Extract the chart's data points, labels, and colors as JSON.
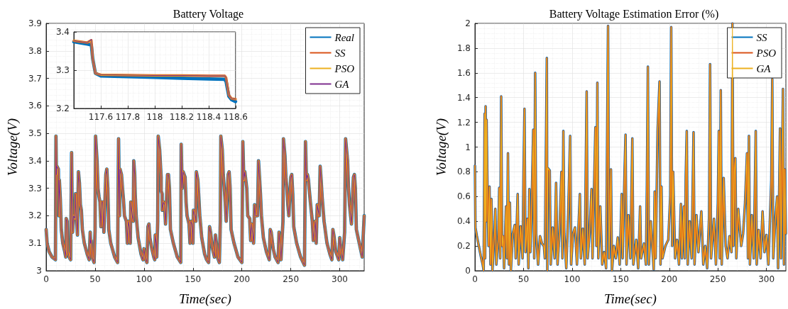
{
  "chart_data": [
    {
      "type": "line",
      "title": "Battery Voltage",
      "xlabel": "Time(sec)",
      "ylabel": "Voltage(V)",
      "xlim": [
        0,
        325
      ],
      "ylim": [
        3,
        3.9
      ],
      "xticks": [
        0,
        50,
        100,
        150,
        200,
        250,
        300
      ],
      "yticks": [
        3,
        3.1,
        3.2,
        3.3,
        3.4,
        3.5,
        3.6,
        3.7,
        3.8,
        3.9
      ],
      "grid": true,
      "legend": "top right",
      "x": [
        0,
        1,
        3,
        6,
        9.5,
        10,
        10.5,
        11,
        12.5,
        13,
        13.5,
        14.5,
        15.5,
        17,
        19,
        20,
        20.5,
        21.5,
        22,
        23.5,
        25,
        26,
        26.5,
        27,
        28,
        29.5,
        30,
        31,
        32,
        33,
        34,
        35,
        36,
        37,
        39,
        42,
        44,
        45,
        45.5,
        46,
        47,
        49,
        50,
        50.5,
        52,
        53,
        54,
        55,
        56,
        57,
        58,
        59,
        61,
        62,
        63,
        64,
        66,
        70,
        73,
        74,
        75,
        75.5,
        77,
        78,
        79,
        80,
        82,
        83,
        84,
        85,
        86,
        86.5,
        88,
        89,
        89.5,
        90.5,
        91,
        92,
        94,
        97,
        99,
        100,
        101,
        103,
        104,
        105,
        106,
        108,
        110,
        111,
        111.5,
        112.5,
        113,
        114,
        114.5,
        116,
        117.5,
        117.55,
        118.55,
        118.6,
        120,
        121,
        122,
        124,
        125,
        126,
        127,
        130,
        134,
        137.5,
        138,
        139,
        140,
        142,
        143,
        144,
        146,
        147,
        148,
        149,
        150,
        150.5,
        152,
        153,
        153.5,
        155,
        156,
        157,
        159,
        162,
        164,
        166,
        167,
        168,
        170,
        172,
        173,
        174,
        175,
        177,
        178,
        178.5,
        180,
        181,
        182,
        183,
        184,
        186,
        187,
        188,
        189,
        192,
        196,
        200,
        201,
        202,
        203,
        205,
        206,
        208,
        209,
        210,
        212,
        213,
        214,
        216,
        217,
        218,
        219,
        220,
        222,
        225,
        228,
        229,
        230,
        232,
        234,
        237,
        238,
        239,
        240,
        242,
        242.5,
        244,
        245,
        246,
        247,
        248,
        250,
        251,
        252,
        253,
        256,
        260,
        264,
        265,
        266,
        267,
        268,
        270,
        272,
        273,
        275,
        276,
        277,
        279,
        280,
        281,
        282,
        284,
        287,
        290,
        292,
        293,
        294,
        296,
        299,
        300,
        301,
        303,
        305,
        306,
        308,
        309,
        310,
        312,
        314,
        315,
        316,
        317,
        320,
        323,
        325
      ],
      "series": [
        {
          "name": "Real",
          "color": "#0072bd",
          "values": [
            3.15,
            3.1,
            3.07,
            3.05,
            3.04,
            3.49,
            3.35,
            3.38,
            3.37,
            3.2,
            3.33,
            3.26,
            3.15,
            3.1,
            3.07,
            3.05,
            3.19,
            3.18,
            3.07,
            3.05,
            3.04,
            3.43,
            3.25,
            3.14,
            3.2,
            3.19,
            3.28,
            3.19,
            3.13,
            3.36,
            3.32,
            3.24,
            3.22,
            3.15,
            3.1,
            3.06,
            3.04,
            3.14,
            3.1,
            3.11,
            3.05,
            3.03,
            3.15,
            3.49,
            3.4,
            3.3,
            3.27,
            3.25,
            3.16,
            3.25,
            3.25,
            3.14,
            3.35,
            3.37,
            3.3,
            3.15,
            3.1,
            3.05,
            3.03,
            3.48,
            3.2,
            3.37,
            3.35,
            3.3,
            3.26,
            3.2,
            3.18,
            3.1,
            3.18,
            3.16,
            3.1,
            3.25,
            3.2,
            3.18,
            3.4,
            3.35,
            3.28,
            3.2,
            3.12,
            3.06,
            3.04,
            3.08,
            3.05,
            3.03,
            3.16,
            3.17,
            3.12,
            3.08,
            3.05,
            3.04,
            3.13,
            3.1,
            3.05,
            3.18,
            3.49,
            3.44,
            3.34,
            3.29,
            3.28,
            3.22,
            3.25,
            3.24,
            3.17,
            3.35,
            3.35,
            3.3,
            3.15,
            3.1,
            3.05,
            3.03,
            3.46,
            3.3,
            3.36,
            3.34,
            3.25,
            3.2,
            3.17,
            3.1,
            3.18,
            3.17,
            3.1,
            3.22,
            3.2,
            3.18,
            3.36,
            3.33,
            3.27,
            3.2,
            3.12,
            3.06,
            3.04,
            3.03,
            3.16,
            3.14,
            3.08,
            3.05,
            3.13,
            3.1,
            3.05,
            3.03,
            3.18,
            3.49,
            3.44,
            3.35,
            3.3,
            3.25,
            3.18,
            3.35,
            3.36,
            3.3,
            3.15,
            3.1,
            3.05,
            3.03,
            3.47,
            3.33,
            3.36,
            3.3,
            3.2,
            3.19,
            3.11,
            3.17,
            3.1,
            3.24,
            3.2,
            3.2,
            3.4,
            3.34,
            3.28,
            3.2,
            3.12,
            3.07,
            3.04,
            3.15,
            3.14,
            3.08,
            3.05,
            3.03,
            3.14,
            3.1,
            3.04,
            3.18,
            3.48,
            3.42,
            3.34,
            3.3,
            3.24,
            3.2,
            3.34,
            3.35,
            3.28,
            3.16,
            3.1,
            3.05,
            3.02,
            3.47,
            3.33,
            3.35,
            3.33,
            3.25,
            3.18,
            3.11,
            3.18,
            3.1,
            3.24,
            3.2,
            3.38,
            3.33,
            3.27,
            3.18,
            3.1,
            3.06,
            3.04,
            3.15,
            3.13,
            3.07,
            3.04,
            3.12,
            3.08,
            3.04,
            3.14,
            3.48,
            3.4,
            3.3,
            3.24,
            3.17,
            3.34,
            3.35,
            3.3,
            3.15,
            3.1,
            3.05,
            3.2
          ]
        },
        {
          "name": "SS",
          "color": "#d95319",
          "values": [
            3.15,
            3.1,
            3.07,
            3.05,
            3.04,
            3.49,
            3.35,
            3.38,
            3.37,
            3.2,
            3.33,
            3.26,
            3.15,
            3.1,
            3.07,
            3.05,
            3.19,
            3.18,
            3.07,
            3.05,
            3.04,
            3.43,
            3.25,
            3.14,
            3.2,
            3.19,
            3.28,
            3.19,
            3.13,
            3.36,
            3.32,
            3.24,
            3.22,
            3.15,
            3.1,
            3.06,
            3.04,
            3.14,
            3.1,
            3.11,
            3.05,
            3.03,
            3.15,
            3.49,
            3.4,
            3.3,
            3.27,
            3.25,
            3.16,
            3.25,
            3.25,
            3.14,
            3.35,
            3.37,
            3.3,
            3.15,
            3.1,
            3.05,
            3.03,
            3.48,
            3.2,
            3.37,
            3.35,
            3.3,
            3.26,
            3.2,
            3.18,
            3.1,
            3.18,
            3.16,
            3.1,
            3.25,
            3.2,
            3.18,
            3.4,
            3.35,
            3.28,
            3.2,
            3.12,
            3.06,
            3.04,
            3.08,
            3.05,
            3.03,
            3.16,
            3.17,
            3.12,
            3.08,
            3.05,
            3.04,
            3.13,
            3.1,
            3.05,
            3.18,
            3.49,
            3.44,
            3.34,
            3.29,
            3.28,
            3.22,
            3.25,
            3.24,
            3.17,
            3.35,
            3.35,
            3.3,
            3.15,
            3.1,
            3.05,
            3.03,
            3.46,
            3.3,
            3.36,
            3.34,
            3.25,
            3.2,
            3.17,
            3.1,
            3.18,
            3.17,
            3.1,
            3.22,
            3.2,
            3.18,
            3.36,
            3.33,
            3.27,
            3.2,
            3.12,
            3.06,
            3.04,
            3.03,
            3.16,
            3.14,
            3.08,
            3.05,
            3.13,
            3.1,
            3.05,
            3.03,
            3.18,
            3.49,
            3.44,
            3.35,
            3.3,
            3.25,
            3.18,
            3.35,
            3.36,
            3.3,
            3.15,
            3.1,
            3.05,
            3.03,
            3.47,
            3.33,
            3.36,
            3.3,
            3.2,
            3.19,
            3.11,
            3.17,
            3.1,
            3.24,
            3.2,
            3.2,
            3.4,
            3.34,
            3.28,
            3.2,
            3.12,
            3.07,
            3.04,
            3.15,
            3.14,
            3.08,
            3.05,
            3.03,
            3.14,
            3.1,
            3.04,
            3.18,
            3.48,
            3.42,
            3.34,
            3.3,
            3.24,
            3.2,
            3.34,
            3.35,
            3.28,
            3.16,
            3.1,
            3.05,
            3.02,
            3.47,
            3.33,
            3.35,
            3.33,
            3.25,
            3.18,
            3.11,
            3.18,
            3.1,
            3.24,
            3.2,
            3.38,
            3.33,
            3.27,
            3.18,
            3.1,
            3.06,
            3.04,
            3.15,
            3.13,
            3.07,
            3.04,
            3.12,
            3.08,
            3.04,
            3.14,
            3.48,
            3.4,
            3.3,
            3.24,
            3.17,
            3.34,
            3.35,
            3.3,
            3.15,
            3.1,
            3.05,
            3.2
          ]
        },
        {
          "name": "PSO",
          "color": "#edb120",
          "values": [
            3.15,
            3.1,
            3.07,
            3.05,
            3.04,
            3.49,
            3.35,
            3.38,
            3.37,
            3.2,
            3.33,
            3.26,
            3.15,
            3.1,
            3.07,
            3.05,
            3.19,
            3.18,
            3.07,
            3.05,
            3.04,
            3.43,
            3.25,
            3.14,
            3.2,
            3.19,
            3.28,
            3.19,
            3.13,
            3.36,
            3.32,
            3.24,
            3.22,
            3.15,
            3.1,
            3.06,
            3.04,
            3.14,
            3.1,
            3.11,
            3.05,
            3.03,
            3.15,
            3.49,
            3.4,
            3.3,
            3.27,
            3.25,
            3.16,
            3.25,
            3.25,
            3.14,
            3.35,
            3.37,
            3.3,
            3.15,
            3.1,
            3.05,
            3.03,
            3.48,
            3.2,
            3.37,
            3.35,
            3.3,
            3.26,
            3.2,
            3.18,
            3.1,
            3.18,
            3.16,
            3.1,
            3.25,
            3.2,
            3.18,
            3.4,
            3.35,
            3.28,
            3.2,
            3.12,
            3.06,
            3.04,
            3.08,
            3.05,
            3.03,
            3.16,
            3.17,
            3.12,
            3.08,
            3.05,
            3.04,
            3.13,
            3.1,
            3.05,
            3.18,
            3.49,
            3.44,
            3.34,
            3.29,
            3.28,
            3.22,
            3.25,
            3.24,
            3.17,
            3.35,
            3.35,
            3.3,
            3.15,
            3.1,
            3.05,
            3.03,
            3.46,
            3.3,
            3.36,
            3.34,
            3.25,
            3.2,
            3.17,
            3.1,
            3.18,
            3.17,
            3.1,
            3.22,
            3.2,
            3.18,
            3.36,
            3.33,
            3.27,
            3.2,
            3.12,
            3.06,
            3.04,
            3.03,
            3.16,
            3.14,
            3.08,
            3.05,
            3.13,
            3.1,
            3.05,
            3.03,
            3.18,
            3.49,
            3.44,
            3.35,
            3.3,
            3.25,
            3.18,
            3.35,
            3.36,
            3.3,
            3.15,
            3.1,
            3.05,
            3.03,
            3.47,
            3.33,
            3.36,
            3.3,
            3.2,
            3.19,
            3.11,
            3.17,
            3.1,
            3.24,
            3.2,
            3.2,
            3.4,
            3.34,
            3.28,
            3.2,
            3.12,
            3.07,
            3.04,
            3.15,
            3.14,
            3.08,
            3.05,
            3.03,
            3.14,
            3.1,
            3.04,
            3.18,
            3.48,
            3.42,
            3.34,
            3.3,
            3.24,
            3.2,
            3.34,
            3.35,
            3.28,
            3.16,
            3.1,
            3.05,
            3.02,
            3.47,
            3.33,
            3.35,
            3.33,
            3.25,
            3.18,
            3.11,
            3.18,
            3.1,
            3.24,
            3.2,
            3.38,
            3.33,
            3.27,
            3.18,
            3.1,
            3.06,
            3.04,
            3.15,
            3.13,
            3.07,
            3.04,
            3.12,
            3.08,
            3.04,
            3.14,
            3.48,
            3.4,
            3.3,
            3.24,
            3.17,
            3.34,
            3.35,
            3.3,
            3.15,
            3.1,
            3.05,
            3.2
          ]
        },
        {
          "name": "GA",
          "color": "#7e2f8e",
          "values": [
            3.15,
            3.1,
            3.07,
            3.05,
            3.04,
            3.49,
            3.35,
            3.38,
            3.37,
            3.2,
            3.33,
            3.26,
            3.15,
            3.1,
            3.07,
            3.05,
            3.19,
            3.18,
            3.07,
            3.05,
            3.04,
            3.43,
            3.25,
            3.14,
            3.2,
            3.19,
            3.28,
            3.19,
            3.13,
            3.36,
            3.32,
            3.24,
            3.22,
            3.15,
            3.1,
            3.06,
            3.04,
            3.14,
            3.1,
            3.11,
            3.05,
            3.03,
            3.15,
            3.49,
            3.4,
            3.3,
            3.27,
            3.25,
            3.16,
            3.25,
            3.25,
            3.14,
            3.35,
            3.37,
            3.3,
            3.15,
            3.1,
            3.05,
            3.03,
            3.48,
            3.2,
            3.37,
            3.35,
            3.3,
            3.26,
            3.2,
            3.18,
            3.1,
            3.18,
            3.16,
            3.1,
            3.25,
            3.2,
            3.18,
            3.4,
            3.35,
            3.28,
            3.2,
            3.12,
            3.06,
            3.04,
            3.08,
            3.05,
            3.03,
            3.16,
            3.17,
            3.12,
            3.08,
            3.05,
            3.04,
            3.13,
            3.1,
            3.05,
            3.18,
            3.49,
            3.44,
            3.34,
            3.29,
            3.28,
            3.22,
            3.25,
            3.24,
            3.17,
            3.35,
            3.35,
            3.3,
            3.15,
            3.1,
            3.05,
            3.03,
            3.46,
            3.3,
            3.36,
            3.34,
            3.25,
            3.2,
            3.17,
            3.1,
            3.18,
            3.17,
            3.1,
            3.22,
            3.2,
            3.18,
            3.36,
            3.33,
            3.27,
            3.2,
            3.12,
            3.06,
            3.04,
            3.03,
            3.16,
            3.14,
            3.08,
            3.05,
            3.13,
            3.1,
            3.05,
            3.03,
            3.18,
            3.49,
            3.44,
            3.35,
            3.3,
            3.25,
            3.18,
            3.35,
            3.36,
            3.3,
            3.15,
            3.1,
            3.05,
            3.03,
            3.47,
            3.33,
            3.36,
            3.3,
            3.2,
            3.19,
            3.11,
            3.17,
            3.1,
            3.24,
            3.2,
            3.2,
            3.4,
            3.34,
            3.28,
            3.2,
            3.12,
            3.07,
            3.04,
            3.15,
            3.14,
            3.08,
            3.05,
            3.03,
            3.14,
            3.1,
            3.04,
            3.18,
            3.48,
            3.42,
            3.34,
            3.3,
            3.24,
            3.2,
            3.34,
            3.35,
            3.28,
            3.16,
            3.1,
            3.05,
            3.02,
            3.47,
            3.33,
            3.35,
            3.33,
            3.25,
            3.18,
            3.11,
            3.18,
            3.1,
            3.24,
            3.2,
            3.38,
            3.33,
            3.27,
            3.18,
            3.1,
            3.06,
            3.04,
            3.15,
            3.13,
            3.07,
            3.04,
            3.12,
            3.08,
            3.04,
            3.14,
            3.48,
            3.4,
            3.3,
            3.24,
            3.17,
            3.34,
            3.35,
            3.3,
            3.15,
            3.1,
            3.05,
            3.2
          ]
        }
      ]
    },
    {
      "type": "line",
      "xlim": [
        117.4,
        118.6
      ],
      "ylim": [
        3.2,
        3.4
      ],
      "xticks": [
        117.6,
        117.8,
        118,
        118.2,
        118.4,
        118.6
      ],
      "yticks": [
        3.2,
        3.3,
        3.4
      ],
      "grid": true,
      "x": [
        117.4,
        117.5,
        117.53,
        117.54,
        117.56,
        117.6,
        117.8,
        118,
        118.2,
        118.4,
        118.52,
        118.53,
        118.55,
        118.57,
        118.6
      ],
      "series": [
        {
          "color": "#0072bd",
          "values": [
            3.374,
            3.368,
            3.366,
            3.33,
            3.292,
            3.285,
            3.283,
            3.281,
            3.279,
            3.277,
            3.276,
            3.27,
            3.232,
            3.223,
            3.218
          ]
        },
        {
          "color": "#d95319",
          "values": [
            3.377,
            3.372,
            3.378,
            3.33,
            3.292,
            3.288,
            3.287,
            3.286,
            3.286,
            3.285,
            3.285,
            3.28,
            3.235,
            3.226,
            3.224
          ]
        },
        {
          "color": "#edb120",
          "values": [
            3.377,
            3.372,
            3.378,
            3.33,
            3.292,
            3.288,
            3.287,
            3.286,
            3.286,
            3.285,
            3.285,
            3.28,
            3.235,
            3.226,
            3.224
          ]
        },
        {
          "color": "#7e2f8e",
          "values": [
            3.377,
            3.372,
            3.38,
            3.33,
            3.292,
            3.288,
            3.287,
            3.286,
            3.286,
            3.285,
            3.285,
            3.28,
            3.235,
            3.226,
            3.224
          ]
        }
      ]
    },
    {
      "type": "line",
      "title": "Battery Voltage Estimation Error (%)",
      "xlabel": "Time(sec)",
      "ylabel": "Voltage(V)",
      "xlim": [
        0,
        320
      ],
      "ylim": [
        0,
        2
      ],
      "xticks": [
        0,
        50,
        100,
        150,
        200,
        250,
        300
      ],
      "yticks": [
        0,
        0.2,
        0.4,
        0.6,
        0.8,
        1,
        1.2,
        1.4,
        1.6,
        1.8,
        2
      ],
      "grid": true,
      "legend": "top right",
      "x": [
        0,
        0.5,
        2,
        4,
        6,
        8,
        9,
        10,
        10.5,
        11,
        11.5,
        12,
        13,
        14,
        15,
        16,
        17,
        18,
        20,
        21,
        22,
        24,
        25,
        26,
        27,
        28,
        29,
        30,
        32,
        33,
        34,
        35,
        36,
        37,
        39,
        41,
        42,
        44,
        45,
        47,
        49,
        50,
        51,
        52,
        54,
        55,
        56,
        57,
        58,
        60,
        61,
        62,
        63,
        65,
        67,
        69,
        71,
        72,
        74,
        74.5,
        75,
        77,
        78,
        80,
        82,
        83.5,
        85,
        87,
        89,
        90,
        91,
        92,
        94,
        96,
        98,
        99,
        101,
        103,
        105,
        108,
        109,
        111,
        113,
        114,
        115,
        116,
        118,
        120,
        121,
        124,
        125,
        126,
        127,
        129,
        131,
        133,
        135,
        137,
        138,
        140,
        141,
        143,
        145,
        147,
        149,
        151,
        152,
        154,
        155,
        156,
        158,
        160,
        162,
        163,
        166,
        168,
        170,
        171,
        174,
        176,
        177,
        178,
        179,
        181,
        184,
        185,
        186,
        188,
        190,
        191,
        192,
        193,
        196,
        199,
        201,
        202,
        203,
        204,
        206,
        208,
        210,
        212,
        213,
        215,
        216,
        217,
        218,
        219,
        221,
        223,
        225,
        226,
        228,
        230,
        233,
        235,
        237,
        239,
        241,
        242,
        243,
        246,
        248,
        250,
        251,
        252,
        253,
        254,
        256,
        258,
        260,
        262,
        264,
        265,
        266,
        267,
        268,
        269,
        271,
        274,
        276,
        278,
        280,
        281,
        282,
        283,
        285,
        287,
        289,
        290,
        292,
        294,
        296,
        298,
        300,
        302,
        305,
        306,
        307,
        309,
        311,
        312,
        314,
        315,
        317,
        318,
        319,
        320
      ],
      "series": [
        {
          "name": "SS",
          "color": "#0072bd",
          "values": [
            0.85,
            0.35,
            0.28,
            0.2,
            0.12,
            0.05,
            0,
            1.27,
            0.1,
            1.33,
            0.4,
            1.22,
            0.6,
            0.2,
            0.68,
            0.05,
            0.58,
            0,
            0.3,
            0.5,
            0.05,
            0.25,
            0.67,
            0.1,
            1.41,
            0.2,
            0.28,
            0.02,
            0.52,
            0.1,
            0.95,
            0.05,
            0.55,
            0,
            0.3,
            0.37,
            0.1,
            0.62,
            0.05,
            0.36,
            0.1,
            0.77,
            1.31,
            0.15,
            0.42,
            0.02,
            0.66,
            0.15,
            0.38,
            1.14,
            0.1,
            1.6,
            0.3,
            0.05,
            0.28,
            0.22,
            0.2,
            0.1,
            1.72,
            0,
            0.83,
            0.81,
            0.05,
            0.35,
            0.1,
            0.71,
            0.05,
            0.3,
            0.8,
            0.1,
            1.13,
            0.3,
            0.02,
            0.46,
            1.09,
            0.05,
            0.3,
            0.35,
            0.05,
            0.62,
            0.1,
            0.34,
            0.05,
            0.76,
            1.45,
            0.1,
            0.3,
            0.66,
            0.1,
            1.16,
            0.2,
            1.52,
            0.1,
            0.52,
            0.05,
            0.15,
            0.02,
            1.98,
            0.1,
            0.82,
            0,
            0.2,
            0.1,
            0.27,
            0.05,
            0.62,
            0.1,
            0.8,
            1.1,
            0.05,
            0.45,
            0.1,
            1.07,
            0.05,
            0.25,
            0.02,
            0.52,
            0.1,
            0.22,
            0.05,
            0.7,
            1.65,
            0.05,
            0.4,
            0.01,
            0.64,
            0.1,
            1.13,
            1.53,
            0.05,
            0.68,
            0.1,
            0.2,
            0.25,
            0.6,
            1.97,
            0.2,
            0.8,
            0.1,
            0.25,
            0.05,
            0.54,
            0.1,
            0.52,
            0.1,
            0.77,
            1.13,
            0.05,
            0.4,
            0.1,
            1.12,
            0.05,
            0.45,
            0.15,
            0.48,
            0.05,
            0.2,
            0.02,
            0.44,
            1.67,
            0.1,
            0.42,
            0.05,
            0.55,
            1.13,
            0.1,
            1.46,
            0.05,
            0.75,
            0.2,
            0.1,
            0.28,
            0.15,
            2,
            0.2,
            0.8,
            0.91,
            0.1,
            0.5,
            0.2,
            0.3,
            0.55,
            0.95,
            0.1,
            1.09,
            0.05,
            0.45,
            0.1,
            1.13,
            0.05,
            0.33,
            0.1,
            0.48,
            0.15,
            0.29,
            0.05,
            0.73,
            1.55,
            0.1,
            0.4,
            0.6,
            0.02,
            1.15,
            0.1,
            1.47,
            0.05,
            0.82,
            0.3
          ]
        },
        {
          "name": "PSO",
          "color": "#d95319",
          "values": [
            0.85,
            0.35,
            0.28,
            0.2,
            0.12,
            0.05,
            0,
            1.27,
            0.1,
            1.33,
            0.4,
            1.22,
            0.6,
            0.2,
            0.68,
            0.05,
            0.58,
            0,
            0.3,
            0.5,
            0.05,
            0.25,
            0.67,
            0.1,
            1.41,
            0.2,
            0.28,
            0.02,
            0.52,
            0.1,
            0.95,
            0.05,
            0.55,
            0,
            0.3,
            0.37,
            0.1,
            0.62,
            0.05,
            0.36,
            0.1,
            0.77,
            1.31,
            0.15,
            0.42,
            0.02,
            0.66,
            0.15,
            0.38,
            1.14,
            0.1,
            1.6,
            0.3,
            0.05,
            0.28,
            0.22,
            0.2,
            0.1,
            1.72,
            0,
            0.83,
            0.81,
            0.05,
            0.35,
            0.1,
            0.71,
            0.05,
            0.3,
            0.8,
            0.1,
            1.13,
            0.3,
            0.02,
            0.46,
            1.09,
            0.05,
            0.3,
            0.35,
            0.05,
            0.62,
            0.1,
            0.34,
            0.05,
            0.76,
            1.45,
            0.1,
            0.3,
            0.66,
            0.1,
            1.16,
            0.2,
            1.52,
            0.1,
            0.52,
            0.05,
            0.15,
            0.02,
            1.98,
            0.1,
            0.82,
            0,
            0.2,
            0.1,
            0.27,
            0.05,
            0.62,
            0.1,
            0.8,
            1.1,
            0.05,
            0.45,
            0.1,
            1.07,
            0.05,
            0.25,
            0.02,
            0.52,
            0.1,
            0.22,
            0.05,
            0.7,
            1.65,
            0.05,
            0.4,
            0.01,
            0.64,
            0.1,
            1.13,
            1.53,
            0.05,
            0.68,
            0.1,
            0.2,
            0.25,
            0.6,
            1.97,
            0.2,
            0.8,
            0.1,
            0.25,
            0.05,
            0.54,
            0.1,
            0.52,
            0.1,
            0.77,
            1.13,
            0.05,
            0.4,
            0.1,
            1.12,
            0.05,
            0.45,
            0.15,
            0.48,
            0.05,
            0.2,
            0.02,
            0.44,
            1.67,
            0.1,
            0.42,
            0.05,
            0.55,
            1.13,
            0.1,
            1.46,
            0.05,
            0.75,
            0.2,
            0.1,
            0.28,
            0.15,
            2,
            0.2,
            0.8,
            0.91,
            0.1,
            0.5,
            0.2,
            0.3,
            0.55,
            0.95,
            0.1,
            1.09,
            0.05,
            0.45,
            0.1,
            1.13,
            0.05,
            0.33,
            0.1,
            0.48,
            0.15,
            0.29,
            0.05,
            0.73,
            1.55,
            0.1,
            0.4,
            0.6,
            0.02,
            1.15,
            0.1,
            1.47,
            0.05,
            0.82,
            0.3
          ]
        },
        {
          "name": "GA",
          "color": "#edb120",
          "values": [
            0.85,
            0.35,
            0.28,
            0.2,
            0.12,
            0.05,
            0,
            1.27,
            0.1,
            1.33,
            0.4,
            1.22,
            0.6,
            0.2,
            0.68,
            0.05,
            0.58,
            0,
            0.3,
            0.5,
            0.05,
            0.25,
            0.67,
            0.1,
            1.41,
            0.2,
            0.28,
            0.02,
            0.52,
            0.1,
            0.95,
            0.05,
            0.55,
            0,
            0.3,
            0.37,
            0.1,
            0.62,
            0.05,
            0.36,
            0.1,
            0.77,
            1.31,
            0.15,
            0.42,
            0.02,
            0.66,
            0.15,
            0.38,
            1.14,
            0.1,
            1.6,
            0.3,
            0.05,
            0.28,
            0.22,
            0.2,
            0.1,
            1.72,
            0,
            0.83,
            0.81,
            0.05,
            0.35,
            0.1,
            0.71,
            0.05,
            0.3,
            0.8,
            0.1,
            1.13,
            0.3,
            0.02,
            0.46,
            1.09,
            0.05,
            0.3,
            0.35,
            0.05,
            0.62,
            0.1,
            0.34,
            0.05,
            0.76,
            1.45,
            0.1,
            0.3,
            0.66,
            0.1,
            1.16,
            0.2,
            1.52,
            0.1,
            0.52,
            0.05,
            0.15,
            0.02,
            1.98,
            0.1,
            0.82,
            0,
            0.2,
            0.1,
            0.27,
            0.05,
            0.62,
            0.1,
            0.8,
            1.1,
            0.05,
            0.45,
            0.1,
            1.07,
            0.05,
            0.25,
            0.02,
            0.52,
            0.1,
            0.22,
            0.05,
            0.7,
            1.65,
            0.05,
            0.4,
            0.01,
            0.64,
            0.1,
            1.13,
            1.53,
            0.05,
            0.68,
            0.1,
            0.2,
            0.25,
            0.6,
            1.97,
            0.2,
            0.8,
            0.1,
            0.25,
            0.05,
            0.54,
            0.1,
            0.52,
            0.1,
            0.77,
            1.13,
            0.05,
            0.4,
            0.1,
            1.12,
            0.05,
            0.45,
            0.15,
            0.48,
            0.05,
            0.2,
            0.02,
            0.44,
            1.67,
            0.1,
            0.42,
            0.05,
            0.55,
            1.13,
            0.1,
            1.46,
            0.05,
            0.75,
            0.2,
            0.1,
            0.28,
            0.15,
            2,
            0.2,
            0.8,
            0.91,
            0.1,
            0.5,
            0.2,
            0.3,
            0.55,
            0.95,
            0.1,
            1.09,
            0.05,
            0.45,
            0.1,
            1.13,
            0.05,
            0.33,
            0.1,
            0.48,
            0.15,
            0.29,
            0.05,
            0.73,
            1.55,
            0.1,
            0.4,
            0.6,
            0.02,
            1.15,
            0.1,
            1.47,
            0.05,
            0.82,
            0.3
          ]
        }
      ]
    }
  ]
}
